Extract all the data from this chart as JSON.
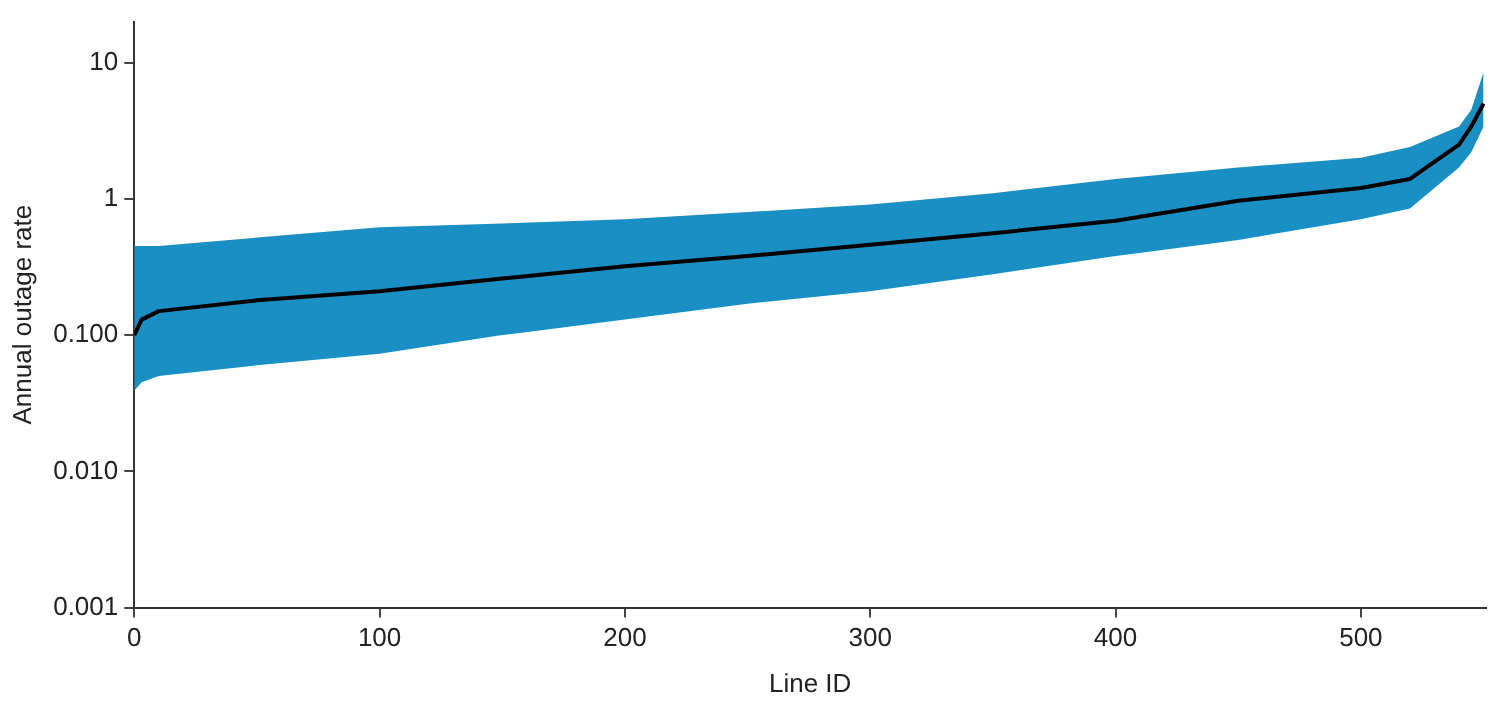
{
  "chart_data": {
    "type": "line",
    "xlabel": "Line ID",
    "ylabel": "Annual outage rate",
    "log": "y",
    "grid": false,
    "legend": false,
    "marker": "none",
    "line_style": "solid",
    "xlim": [
      0,
      551
    ],
    "xticks": [
      0,
      100,
      200,
      300,
      400,
      500
    ],
    "ylim": [
      0.001,
      20
    ],
    "yticks": [
      {
        "value": 0.001,
        "label": "0.001"
      },
      {
        "value": 0.01,
        "label": "0.010"
      },
      {
        "value": 0.1,
        "label": "0.100"
      },
      1,
      10
    ],
    "series": [
      {
        "color": "#000000",
        "x": [
          0,
          3,
          10,
          50,
          100,
          150,
          200,
          250,
          300,
          350,
          400,
          450,
          500,
          520,
          540,
          545,
          550
        ],
        "values": [
          0.1,
          0.13,
          0.15,
          0.18,
          0.21,
          0.26,
          0.32,
          0.38,
          0.46,
          0.56,
          0.69,
          0.97,
          1.2,
          1.4,
          2.5,
          3.4,
          5
        ],
        "lower": [
          0.039,
          0.045,
          0.05,
          0.06,
          0.073,
          0.1,
          0.13,
          0.17,
          0.21,
          0.28,
          0.38,
          0.5,
          0.71,
          0.85,
          1.7,
          2.2,
          3.4
        ],
        "upper": [
          0.45,
          0.45,
          0.45,
          0.52,
          0.62,
          0.66,
          0.71,
          0.8,
          0.91,
          1.1,
          1.4,
          1.7,
          2.0,
          2.4,
          3.4,
          4.5,
          8.5
        ]
      }
    ]
  }
}
